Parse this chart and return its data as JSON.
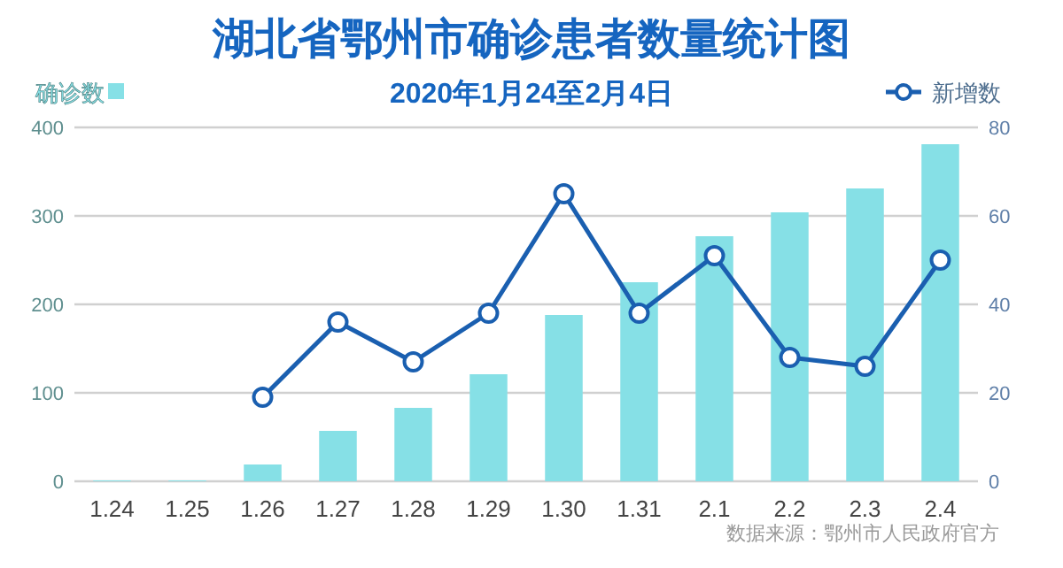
{
  "chart_data": {
    "type": "bar",
    "title": "湖北省鄂州市确诊患者数量统计图",
    "subtitle": "2020年1月24至2月4日",
    "categories": [
      "1.24",
      "1.25",
      "1.26",
      "1.27",
      "1.28",
      "1.29",
      "1.30",
      "1.31",
      "2.1",
      "2.2",
      "2.3",
      "2.4"
    ],
    "series": [
      {
        "name": "确诊数",
        "color": "#86e0e6",
        "values": [
          1,
          1,
          19,
          57,
          83,
          121,
          188,
          225,
          277,
          304,
          331,
          381
        ]
      },
      {
        "name": "新增数",
        "type": "line",
        "axis": "y2",
        "color": "#1a5fb0",
        "marker": "circle",
        "values": [
          null,
          null,
          19,
          36,
          27,
          38,
          65,
          38,
          51,
          28,
          26,
          50
        ]
      }
    ],
    "ylim": [
      0,
      400
    ],
    "yticks": [
      0,
      100,
      200,
      300,
      400
    ],
    "y2lim": [
      0,
      80
    ],
    "y2ticks": [
      0,
      20,
      40,
      60,
      80
    ],
    "grid": "y",
    "legend": "top",
    "annotations": [
      "数据来源：鄂州市人民政府官方"
    ]
  }
}
